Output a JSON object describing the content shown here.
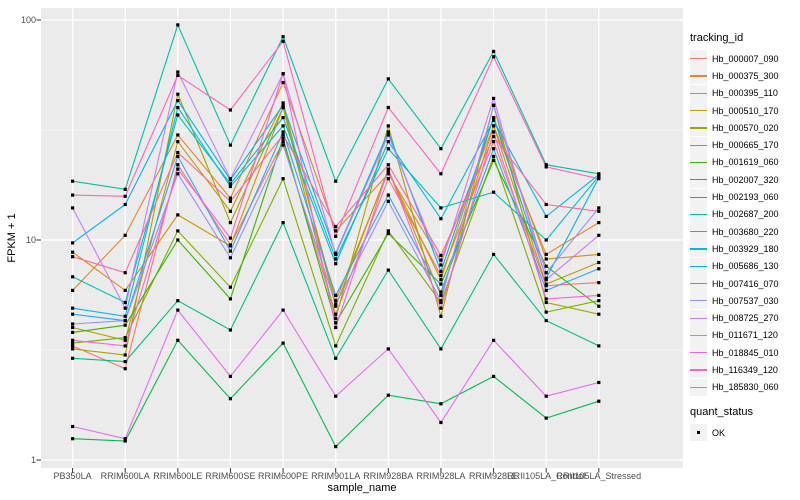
{
  "figure": {
    "bg": "#FFFFFF",
    "panel_bg": "#EBEBEB",
    "grid_color": "#FFFFFF",
    "axis_text_color": "#4D4D4D",
    "tick_mark_color": "#333333",
    "legend_key_bg": "#F2F2F2",
    "point_color": "#000000"
  },
  "chart_data": {
    "type": "line",
    "title": "",
    "xlabel": "sample_name",
    "ylabel": "FPKM + 1",
    "y_scale": "log10",
    "y_ticks": [
      1,
      10,
      100
    ],
    "y_tick_labels": [
      "1",
      "10",
      "100"
    ],
    "y_minor_breaks": [
      3.1623,
      31.6228
    ],
    "ylim": [
      0.92,
      113
    ],
    "grid": true,
    "legend_position": "right",
    "legend_title": "tracking_id",
    "point_shape": "filled-square",
    "quant_legend": {
      "title": "quant_status",
      "items": [
        "OK"
      ]
    },
    "categories": [
      "PB350LA",
      "RRIM600LA",
      "RRIM600LE",
      "RRIM600SE",
      "RRIM600PE",
      "RRIM901LA",
      "RRIM928BA",
      "RRIM928LA",
      "RRIM928LE",
      "RRII105LA_Control",
      "RRII105LA_Stressed"
    ],
    "series": [
      {
        "name": "Hb_000007_090",
        "color": "#F8766D",
        "values": [
          3.3,
          2.6,
          22,
          9.5,
          28,
          4.6,
          19,
          6.9,
          28,
          6.2,
          6.4
        ]
      },
      {
        "name": "Hb_000375_300",
        "color": "#EA8331",
        "values": [
          5.9,
          10.5,
          30,
          15.5,
          52,
          11,
          20,
          8.1,
          33,
          8.6,
          12
        ]
      },
      {
        "name": "Hb_000395_110",
        "color": "#D89000",
        "values": [
          8.8,
          5.9,
          13,
          9.4,
          40,
          5.3,
          20.5,
          6.6,
          36,
          8.2,
          8.6
        ]
      },
      {
        "name": "Hb_000510_170",
        "color": "#C09B00",
        "values": [
          4.0,
          3.5,
          28,
          13.5,
          42,
          5.0,
          21,
          5.6,
          33,
          6.3,
          7.9
        ]
      },
      {
        "name": "Hb_000570_020",
        "color": "#A3A500",
        "values": [
          3.2,
          3.0,
          46,
          12,
          40,
          4.4,
          33,
          4.5,
          41,
          5.2,
          4.6
        ]
      },
      {
        "name": "Hb_000665_170",
        "color": "#7CAE00",
        "values": [
          3.4,
          3.6,
          11,
          6.1,
          19,
          3.3,
          11,
          5.2,
          24,
          4.7,
          5.3
        ]
      },
      {
        "name": "Hb_001619_060",
        "color": "#39B600",
        "values": [
          3.8,
          4.1,
          10,
          5.4,
          29,
          4.2,
          10.7,
          6.3,
          23,
          7.6,
          5.0
        ]
      },
      {
        "name": "Hb_002007_320",
        "color": "#00BB4E",
        "values": [
          1.25,
          1.22,
          3.5,
          1.9,
          3.4,
          1.15,
          1.97,
          1.8,
          2.4,
          1.55,
          1.85
        ]
      },
      {
        "name": "Hb_002193_060",
        "color": "#00BF7D",
        "values": [
          2.9,
          2.8,
          5.3,
          3.9,
          12,
          2.9,
          7.3,
          3.2,
          8.6,
          4.3,
          3.3
        ]
      },
      {
        "name": "Hb_002687_200",
        "color": "#00C1A3",
        "values": [
          18.5,
          17,
          95,
          27,
          84,
          18.5,
          54,
          26,
          72,
          22,
          20
        ]
      },
      {
        "name": "Hb_003680_220",
        "color": "#00BFC4",
        "values": [
          6.8,
          5.2,
          37,
          18,
          36,
          8.2,
          26,
          14,
          16.5,
          10,
          19.5
        ]
      },
      {
        "name": "Hb_003929_180",
        "color": "#00BAE0",
        "values": [
          4.9,
          4.5,
          40,
          17.5,
          33,
          7.8,
          28,
          12.5,
          35,
          12.8,
          19.8
        ]
      },
      {
        "name": "Hb_005686_130",
        "color": "#00B0F6",
        "values": [
          9.7,
          14.5,
          43,
          18.8,
          41,
          8.7,
          31,
          7.2,
          36,
          6.7,
          19.2
        ]
      },
      {
        "name": "Hb_007416_070",
        "color": "#35A2FF",
        "values": [
          4.6,
          4.3,
          24,
          8.9,
          31,
          5.6,
          16,
          5.8,
          26,
          5.9,
          7.4
        ]
      },
      {
        "name": "Hb_007537_030",
        "color": "#9590FF",
        "values": [
          4.15,
          4.3,
          20,
          8.3,
          27,
          5.1,
          15,
          5.3,
          41,
          7.1,
          14
        ]
      },
      {
        "name": "Hb_008725_270",
        "color": "#C77CFF",
        "values": [
          14,
          4.9,
          58,
          19,
          57,
          8.6,
          30,
          7.7,
          44,
          6.6,
          10.5
        ]
      },
      {
        "name": "Hb_011671_120",
        "color": "#E76BF3",
        "values": [
          1.42,
          1.25,
          4.8,
          2.4,
          4.8,
          1.95,
          3.2,
          1.48,
          3.5,
          1.95,
          2.25
        ]
      },
      {
        "name": "Hb_018845_010",
        "color": "#FA62DB",
        "values": [
          3.5,
          3.3,
          21,
          10.2,
          57,
          4.0,
          21,
          4.9,
          31,
          5.4,
          5.6
        ]
      },
      {
        "name": "Hb_116349_120",
        "color": "#FF62BC",
        "values": [
          16,
          15.8,
          56,
          39,
          80,
          10.4,
          40,
          20,
          68,
          21.5,
          19
        ]
      },
      {
        "name": "Hb_185830_060",
        "color": "#FF6A98",
        "values": [
          8.4,
          7.1,
          25,
          15,
          30,
          11.5,
          22,
          8.5,
          29.5,
          14.5,
          13.5
        ]
      }
    ]
  }
}
